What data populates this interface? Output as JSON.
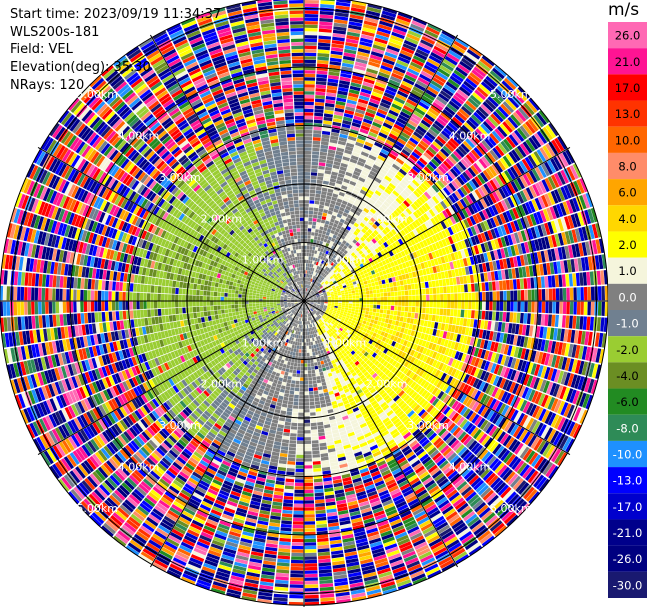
{
  "header": {
    "start_time": "Start time: 2023/09/19 11:34:37",
    "instrument": "WLS200s-181",
    "field": "Field: VEL",
    "elevation": "Elevation(deg): 35.30",
    "nrays": "NRays: 120"
  },
  "chart_data": {
    "type": "heatmap",
    "projection": "polar (PPI)",
    "field": "VEL",
    "units": "m/s",
    "nrays": 120,
    "elevation_deg": 35.3,
    "range_rings": [
      {
        "range_km": 1.0,
        "label": "1.00km"
      },
      {
        "range_km": 2.0,
        "label": "2.00km"
      },
      {
        "range_km": 3.0,
        "label": "3.00km"
      },
      {
        "range_km": 4.0,
        "label": "4.00km"
      },
      {
        "range_km": 5.0,
        "label": "5.00km"
      }
    ],
    "range_max_km": 5.2,
    "azimuth_lines_deg": [
      0,
      30,
      60,
      90,
      120,
      150,
      180,
      210,
      240,
      270,
      300,
      330
    ],
    "colorbar": {
      "title": "m/s",
      "ticks": [
        "26.0",
        "21.0",
        "17.0",
        "13.0",
        "10.0",
        "8.0",
        "6.0",
        "4.0",
        "2.0",
        "1.0",
        "0.0",
        "-1.0",
        "-2.0",
        "-4.0",
        "-6.0",
        "-8.0",
        "-10.0",
        "-13.0",
        "-17.0",
        "-21.0",
        "-26.0",
        "-30.0"
      ],
      "colors": [
        "#ff69b4",
        "#ff1493",
        "#ff0000",
        "#ff3300",
        "#ff6600",
        "#ff8c69",
        "#ffa500",
        "#ffd700",
        "#ffff00",
        "#f5f5dc",
        "#808080",
        "#708090",
        "#9acd32",
        "#6b8e23",
        "#228b22",
        "#2e8b57",
        "#1e90ff",
        "#0000ff",
        "#0000cd",
        "#00008b",
        "#000080",
        "#191970"
      ]
    },
    "pattern": {
      "gray_core_km": [
        0.0,
        2.2
      ],
      "dipole_extent_km": 3.0,
      "positive_bearing_deg": 100,
      "negative_bearing_deg": 280,
      "noise_beyond_km": 3.0
    }
  }
}
